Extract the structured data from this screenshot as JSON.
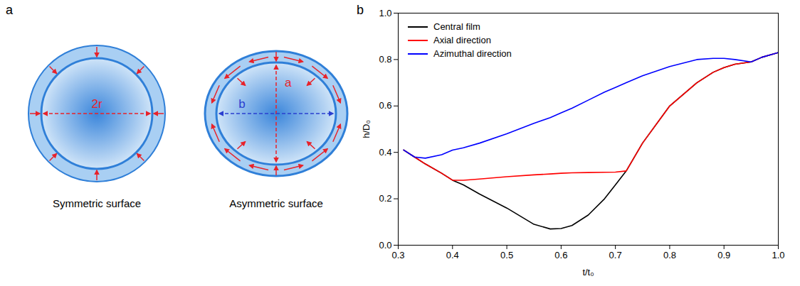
{
  "panel_labels": [
    "a",
    "b"
  ],
  "diagram": {
    "symmetric": {
      "label": "Symmetric surface",
      "diameter_label": "2r"
    },
    "asymmetric": {
      "label": "Asymmetric surface",
      "axis_a_label": "a",
      "axis_b_label": "b"
    }
  },
  "chart_data": {
    "type": "line",
    "xlabel": "t/t₀",
    "ylabel": "h/D₀",
    "x": [
      0.31,
      0.33,
      0.35,
      0.38,
      0.4,
      0.42,
      0.45,
      0.5,
      0.55,
      0.58,
      0.6,
      0.62,
      0.65,
      0.68,
      0.7,
      0.72,
      0.75,
      0.8,
      0.85,
      0.88,
      0.9,
      0.92,
      0.95,
      0.97,
      1.0
    ],
    "series": [
      {
        "name": "Central film",
        "color": "#000000",
        "values": [
          0.41,
          0.38,
          0.35,
          0.31,
          0.28,
          0.26,
          0.22,
          0.16,
          0.09,
          0.07,
          0.072,
          0.085,
          0.13,
          0.2,
          0.26,
          0.32,
          0.44,
          0.6,
          0.7,
          0.745,
          0.765,
          0.78,
          0.79,
          0.81,
          0.83
        ]
      },
      {
        "name": "Axial direction",
        "color": "#ff0000",
        "values": [
          0.41,
          0.38,
          0.35,
          0.31,
          0.28,
          0.28,
          0.285,
          0.295,
          0.303,
          0.307,
          0.31,
          0.312,
          0.313,
          0.314,
          0.315,
          0.32,
          0.44,
          0.6,
          0.7,
          0.745,
          0.765,
          0.78,
          0.79,
          0.81,
          0.83
        ]
      },
      {
        "name": "Azimuthal direction",
        "color": "#0000ff",
        "values": [
          0.41,
          0.38,
          0.375,
          0.39,
          0.41,
          0.42,
          0.44,
          0.48,
          0.525,
          0.55,
          0.57,
          0.59,
          0.625,
          0.66,
          0.68,
          0.7,
          0.73,
          0.77,
          0.8,
          0.805,
          0.805,
          0.8,
          0.79,
          0.81,
          0.83
        ]
      }
    ],
    "xlim": [
      0.3,
      1.0
    ],
    "xticks": [
      0.3,
      0.4,
      0.5,
      0.6,
      0.7,
      0.8,
      0.9,
      {
        "value": 1.0,
        "label": "1.0"
      }
    ],
    "ylim": [
      0.0,
      1.0
    ],
    "yticks": [
      {
        "value": 0.0,
        "label": "0.0"
      },
      0.2,
      0.4,
      0.6,
      0.8,
      {
        "value": 1.0,
        "label": "1.0"
      }
    ],
    "grid": false,
    "legend": "top-left"
  }
}
